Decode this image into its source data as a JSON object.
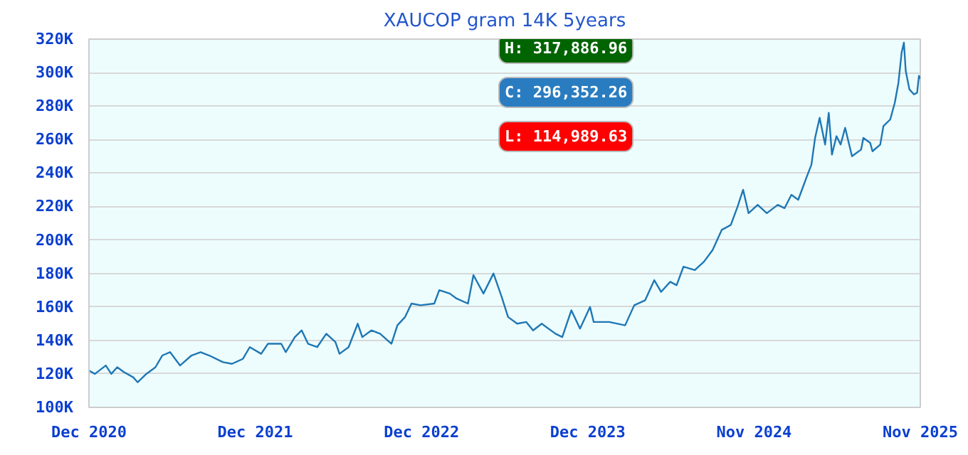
{
  "chart_data": {
    "type": "line",
    "title": "XAUCOP gram 14K 5years",
    "x": [
      "2020-12-01",
      "2020-12-14",
      "2021-01-07",
      "2021-01-19",
      "2021-02-01",
      "2021-02-16",
      "2021-03-08",
      "2021-03-18",
      "2021-04-06",
      "2021-04-26",
      "2021-05-11",
      "2021-05-28",
      "2021-06-19",
      "2021-07-14",
      "2021-08-03",
      "2021-08-22",
      "2021-09-21",
      "2021-10-11",
      "2021-11-04",
      "2021-11-19",
      "2021-12-14",
      "2021-12-29",
      "2022-01-27",
      "2022-02-06",
      "2022-02-26",
      "2022-03-13",
      "2022-03-27",
      "2022-04-16",
      "2022-05-06",
      "2022-05-26",
      "2022-06-04",
      "2022-06-24",
      "2022-07-14",
      "2022-07-24",
      "2022-08-13",
      "2022-09-01",
      "2022-09-26",
      "2022-10-09",
      "2022-10-26",
      "2022-11-09",
      "2022-11-29",
      "2022-12-29",
      "2023-01-09",
      "2023-02-01",
      "2023-02-16",
      "2023-03-13",
      "2023-03-25",
      "2023-04-16",
      "2023-05-08",
      "2023-05-26",
      "2023-06-09",
      "2023-06-29",
      "2023-07-19",
      "2023-08-03",
      "2023-08-22",
      "2023-09-21",
      "2023-10-06",
      "2023-10-26",
      "2023-11-14",
      "2023-12-06",
      "2023-12-14",
      "2024-01-17",
      "2024-02-21",
      "2024-03-12",
      "2024-04-05",
      "2024-04-25",
      "2024-05-10",
      "2024-05-30",
      "2024-06-13",
      "2024-06-28",
      "2024-07-23",
      "2024-08-12",
      "2024-08-31",
      "2024-09-20",
      "2024-10-10",
      "2024-10-25",
      "2024-11-06",
      "2024-11-18",
      "2024-12-08",
      "2024-12-28",
      "2025-01-21",
      "2025-02-05",
      "2025-02-20",
      "2025-03-07",
      "2025-03-26",
      "2025-04-05",
      "2025-04-13",
      "2025-04-23",
      "2025-05-05",
      "2025-05-13",
      "2025-05-20",
      "2025-05-30",
      "2025-06-08",
      "2025-06-18",
      "2025-07-03",
      "2025-07-23",
      "2025-07-28",
      "2025-08-12",
      "2025-08-17",
      "2025-09-03",
      "2025-09-10",
      "2025-09-25",
      "2025-10-05",
      "2025-10-13",
      "2025-10-20",
      "2025-10-25",
      "2025-10-29",
      "2025-11-06",
      "2025-11-16",
      "2025-11-23",
      "2025-11-27",
      "2025-11-30"
    ],
    "series": [
      {
        "color": "#1f77b4",
        "values": [
          122000,
          120000,
          125000,
          120000,
          124000,
          121000,
          118000,
          114990,
          120000,
          124000,
          131000,
          133000,
          125000,
          131000,
          133000,
          131000,
          127000,
          126000,
          129000,
          136000,
          132000,
          138000,
          138000,
          133000,
          142000,
          146000,
          138000,
          136000,
          144000,
          139000,
          132000,
          136000,
          150000,
          142000,
          146000,
          144000,
          138000,
          149000,
          154000,
          162000,
          161000,
          162000,
          170000,
          168000,
          165000,
          162000,
          179000,
          168000,
          180000,
          166000,
          154000,
          150000,
          151000,
          146000,
          150000,
          144000,
          142000,
          158000,
          147000,
          160000,
          151000,
          151000,
          149000,
          161000,
          164000,
          176000,
          169000,
          175000,
          173000,
          184000,
          182000,
          187000,
          194000,
          206000,
          209000,
          220000,
          230000,
          216000,
          221000,
          216000,
          221000,
          219000,
          227000,
          224000,
          238000,
          245000,
          261000,
          273000,
          257000,
          276000,
          251000,
          262000,
          257000,
          267000,
          250000,
          254000,
          261000,
          258000,
          253000,
          257000,
          268000,
          272000,
          282000,
          294000,
          312000,
          317887,
          301000,
          290000,
          287000,
          288000,
          298000,
          296352
        ]
      }
    ],
    "xlim": [
      "2020-12-01",
      "2025-11-30"
    ],
    "xticks": [
      {
        "value": "2020-12-01",
        "label": "Dec 2020"
      },
      {
        "value": "2021-12-01",
        "label": "Dec 2021"
      },
      {
        "value": "2022-12-01",
        "label": "Dec 2022"
      },
      {
        "value": "2023-12-01",
        "label": "Dec 2023"
      },
      {
        "value": "2024-11-30",
        "label": "Nov 2024"
      },
      {
        "value": "2025-11-30",
        "label": "Nov 2025"
      }
    ],
    "ylim": [
      100000,
      320000
    ],
    "yticks": [
      {
        "value": 100000,
        "label": "100K"
      },
      {
        "value": 120000,
        "label": "120K"
      },
      {
        "value": 140000,
        "label": "140K"
      },
      {
        "value": 160000,
        "label": "160K"
      },
      {
        "value": 180000,
        "label": "180K"
      },
      {
        "value": 200000,
        "label": "200K"
      },
      {
        "value": 220000,
        "label": "220K"
      },
      {
        "value": 240000,
        "label": "240K"
      },
      {
        "value": 260000,
        "label": "260K"
      },
      {
        "value": 280000,
        "label": "280K"
      },
      {
        "value": 300000,
        "label": "300K"
      },
      {
        "value": 320000,
        "label": "320K"
      }
    ],
    "grid": "y",
    "annotations": [
      "H: 317,886.96",
      "C: 296,352.26",
      "L: 114,989.63"
    ]
  }
}
